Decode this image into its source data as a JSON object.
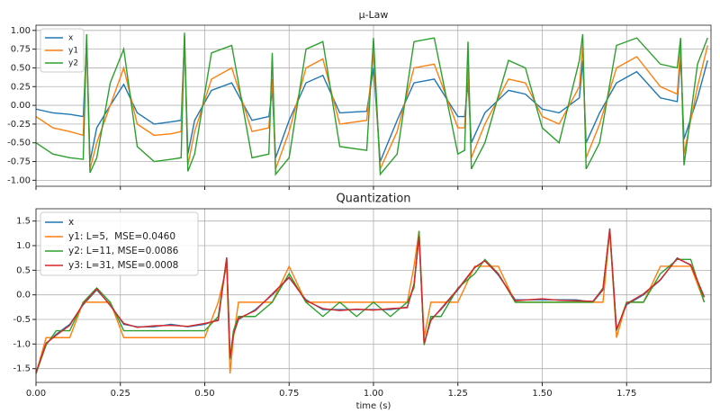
{
  "chart_data": [
    {
      "type": "line",
      "title": "μ-Law",
      "x": [
        0,
        0.05,
        0.1,
        0.14,
        0.15,
        0.16,
        0.18,
        0.22,
        0.26,
        0.3,
        0.35,
        0.4,
        0.43,
        0.44,
        0.45,
        0.47,
        0.52,
        0.58,
        0.64,
        0.69,
        0.7,
        0.71,
        0.75,
        0.8,
        0.85,
        0.9,
        0.98,
        1.0,
        1.02,
        1.07,
        1.12,
        1.18,
        1.25,
        1.27,
        1.28,
        1.29,
        1.33,
        1.4,
        1.45,
        1.5,
        1.55,
        1.61,
        1.62,
        1.63,
        1.67,
        1.72,
        1.78,
        1.85,
        1.9,
        1.91,
        1.92,
        1.96,
        1.99
      ],
      "series": [
        {
          "name": "x",
          "color": "#1f77b4",
          "values": [
            -0.05,
            -0.1,
            -0.12,
            -0.15,
            0.85,
            -0.75,
            -0.3,
            0.0,
            0.28,
            -0.1,
            -0.25,
            -0.22,
            -0.2,
            0.9,
            -0.65,
            -0.2,
            0.2,
            0.3,
            -0.2,
            -0.15,
            0.2,
            -0.7,
            -0.2,
            0.3,
            0.4,
            -0.1,
            -0.08,
            0.5,
            -0.75,
            -0.2,
            0.3,
            0.35,
            -0.15,
            -0.15,
            0.3,
            -0.5,
            -0.1,
            0.2,
            0.15,
            -0.05,
            -0.1,
            0.1,
            0.6,
            -0.5,
            -0.1,
            0.3,
            0.45,
            0.1,
            0.05,
            0.65,
            -0.45,
            0.1,
            0.6
          ]
        },
        {
          "name": "y1",
          "color": "#ff7f0e",
          "values": [
            -0.15,
            -0.3,
            -0.35,
            -0.4,
            0.9,
            -0.85,
            -0.5,
            0.0,
            0.5,
            -0.25,
            -0.4,
            -0.38,
            -0.35,
            0.93,
            -0.8,
            -0.35,
            0.35,
            0.5,
            -0.35,
            -0.3,
            0.35,
            -0.85,
            -0.35,
            0.5,
            0.62,
            -0.25,
            -0.2,
            0.7,
            -0.85,
            -0.35,
            0.5,
            0.55,
            -0.3,
            -0.3,
            0.5,
            -0.7,
            -0.25,
            0.35,
            0.3,
            -0.15,
            -0.25,
            0.25,
            0.8,
            -0.7,
            -0.25,
            0.5,
            0.65,
            0.25,
            0.15,
            0.8,
            -0.65,
            0.25,
            0.8
          ]
        },
        {
          "name": "y2",
          "color": "#2ca02c",
          "values": [
            -0.5,
            -0.65,
            -0.7,
            -0.72,
            0.95,
            -0.9,
            -0.7,
            0.3,
            0.75,
            -0.55,
            -0.75,
            -0.72,
            -0.7,
            0.97,
            -0.88,
            -0.65,
            0.7,
            0.8,
            -0.7,
            -0.65,
            0.7,
            -0.92,
            -0.7,
            0.75,
            0.85,
            -0.55,
            -0.6,
            0.9,
            -0.92,
            -0.65,
            0.85,
            0.9,
            -0.65,
            -0.6,
            0.85,
            -0.85,
            -0.5,
            0.6,
            0.5,
            -0.3,
            -0.5,
            0.6,
            0.95,
            -0.85,
            -0.5,
            0.8,
            0.9,
            0.55,
            0.5,
            0.9,
            -0.8,
            0.55,
            0.9
          ]
        }
      ],
      "xlim": [
        0,
        2
      ],
      "xticks": [
        0,
        0.25,
        0.5,
        0.75,
        1,
        1.25,
        1.5,
        1.75
      ],
      "ylim": [
        -1.08,
        1.07
      ],
      "yticks": [
        {
          "value": -1,
          "label": "-1.00"
        },
        {
          "value": -0.75,
          "label": "-0.75"
        },
        {
          "value": -0.5,
          "label": "-0.50"
        },
        {
          "value": -0.25,
          "label": "-0.25"
        },
        {
          "value": 0,
          "label": "0.00"
        },
        {
          "value": 0.25,
          "label": "0.25"
        },
        {
          "value": 0.5,
          "label": "0.50"
        },
        {
          "value": 0.75,
          "label": "0.75"
        },
        {
          "value": 1,
          "label": "1.00"
        }
      ],
      "grid": true,
      "legend": "upper-left"
    },
    {
      "type": "line",
      "title": "Quantization",
      "x_label": "time (s)",
      "x": [
        0,
        0.03,
        0.06,
        0.1,
        0.14,
        0.18,
        0.22,
        0.26,
        0.3,
        0.35,
        0.4,
        0.45,
        0.5,
        0.54,
        0.565,
        0.575,
        0.585,
        0.6,
        0.65,
        0.7,
        0.75,
        0.8,
        0.85,
        0.9,
        0.95,
        1.0,
        1.05,
        1.1,
        1.12,
        1.135,
        1.15,
        1.17,
        1.2,
        1.25,
        1.3,
        1.33,
        1.37,
        1.42,
        1.5,
        1.55,
        1.6,
        1.65,
        1.68,
        1.7,
        1.72,
        1.75,
        1.8,
        1.85,
        1.9,
        1.94,
        1.98
      ],
      "series": [
        {
          "name": "x",
          "color": "#1f77b4",
          "values": [
            -1.6,
            -1.0,
            -0.8,
            -0.6,
            -0.2,
            0.1,
            -0.2,
            -0.6,
            -0.65,
            -0.65,
            -0.6,
            -0.65,
            -0.6,
            -0.5,
            0.75,
            -1.3,
            -0.8,
            -0.5,
            -0.3,
            0.0,
            0.35,
            -0.1,
            -0.3,
            -0.3,
            -0.3,
            -0.3,
            -0.3,
            -0.25,
            0.2,
            1.2,
            -1.0,
            -0.5,
            -0.3,
            0.1,
            0.55,
            0.7,
            0.4,
            -0.1,
            -0.1,
            -0.1,
            -0.1,
            -0.15,
            0.1,
            1.35,
            -0.7,
            -0.2,
            0.0,
            0.3,
            0.75,
            0.6,
            -0.05
          ]
        },
        {
          "name": "y1: L=5,  MSE=0.0460",
          "color": "#ff7f0e",
          "values": [
            -1.6,
            -0.87,
            -0.87,
            -0.87,
            -0.15,
            -0.15,
            -0.15,
            -0.87,
            -0.87,
            -0.87,
            -0.87,
            -0.87,
            -0.87,
            -0.15,
            0.58,
            -1.6,
            -0.87,
            -0.15,
            -0.15,
            -0.15,
            0.58,
            -0.15,
            -0.15,
            -0.15,
            -0.15,
            -0.15,
            -0.15,
            -0.15,
            0.58,
            1.3,
            -0.87,
            -0.15,
            -0.15,
            -0.15,
            0.58,
            0.58,
            0.58,
            -0.15,
            -0.15,
            -0.15,
            -0.15,
            -0.15,
            -0.15,
            1.3,
            -0.87,
            -0.15,
            -0.15,
            0.58,
            0.58,
            0.58,
            -0.15
          ]
        },
        {
          "name": "y2: L=11, MSE=0.0086",
          "color": "#2ca02c",
          "values": [
            -1.6,
            -1.02,
            -0.73,
            -0.73,
            -0.15,
            0.14,
            -0.15,
            -0.73,
            -0.73,
            -0.73,
            -0.73,
            -0.73,
            -0.73,
            -0.44,
            0.72,
            -1.31,
            -0.73,
            -0.44,
            -0.44,
            -0.15,
            0.43,
            -0.15,
            -0.44,
            -0.15,
            -0.44,
            -0.15,
            -0.44,
            -0.15,
            0.14,
            1.3,
            -1.02,
            -0.44,
            -0.44,
            0.14,
            0.43,
            0.72,
            0.43,
            -0.15,
            -0.15,
            -0.15,
            -0.15,
            -0.15,
            0.14,
            1.3,
            -0.73,
            -0.15,
            -0.15,
            0.43,
            0.72,
            0.72,
            -0.15
          ]
        },
        {
          "name": "y3: L=31, MSE=0.0008",
          "color": "#d62728",
          "values": [
            -1.58,
            -0.98,
            -0.82,
            -0.62,
            -0.18,
            0.12,
            -0.22,
            -0.58,
            -0.66,
            -0.63,
            -0.62,
            -0.64,
            -0.58,
            -0.52,
            0.76,
            -1.28,
            -0.81,
            -0.48,
            -0.32,
            0.02,
            0.36,
            -0.12,
            -0.28,
            -0.32,
            -0.29,
            -0.31,
            -0.28,
            -0.26,
            0.22,
            1.19,
            -0.99,
            -0.52,
            -0.28,
            0.12,
            0.56,
            0.69,
            0.42,
            -0.12,
            -0.08,
            -0.11,
            -0.12,
            -0.13,
            0.12,
            1.34,
            -0.71,
            -0.18,
            0.02,
            0.31,
            0.74,
            0.61,
            -0.04
          ]
        }
      ],
      "xlim": [
        0,
        2
      ],
      "xticks": [
        {
          "value": 0,
          "label": "0.00"
        },
        {
          "value": 0.25,
          "label": "0.25"
        },
        {
          "value": 0.5,
          "label": "0.50"
        },
        {
          "value": 0.75,
          "label": "0.75"
        },
        {
          "value": 1,
          "label": "1.00"
        },
        {
          "value": 1.25,
          "label": "1.25"
        },
        {
          "value": 1.5,
          "label": "1.50"
        },
        {
          "value": 1.75,
          "label": "1.75"
        }
      ],
      "ylim": [
        -1.78,
        1.75
      ],
      "yticks": [
        -1.5,
        {
          "value": -1,
          "label": "-1.0"
        },
        -0.5,
        {
          "value": 0,
          "label": "0.0"
        },
        0.5,
        {
          "value": 1,
          "label": "1.0"
        },
        1.5
      ],
      "grid": true,
      "legend": "upper-left"
    }
  ]
}
